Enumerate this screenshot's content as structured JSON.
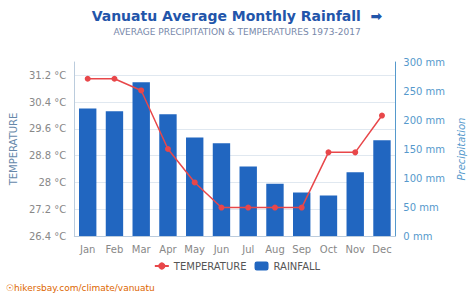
{
  "chart_data": {
    "type": "bar",
    "title": "Vanuatu Average Monthly Rainfall  ➡",
    "subtitle": "AVERAGE PRECIPITATION & TEMPERATURES 1973-2017",
    "ylabel": "TEMPERATURE",
    "y2label": "Precipitation",
    "annotations": [
      "☉hikersbay.com/climate/vanuatu"
    ],
    "categories": [
      "Jan",
      "Feb",
      "Mar",
      "Apr",
      "May",
      "Jun",
      "Jul",
      "Aug",
      "Sep",
      "Oct",
      "Nov",
      "Dec"
    ],
    "series": [
      {
        "name": "TEMPERATURE",
        "type": "line",
        "color": "#e8474a",
        "marker": "circle",
        "values": [
          31.1,
          31.1,
          30.75,
          29.0,
          28.0,
          27.25,
          27.25,
          27.25,
          27.25,
          28.9,
          28.9,
          30.0
        ]
      },
      {
        "name": "RAINFALL",
        "type": "bar",
        "color": "#2166c0",
        "axis": "y2",
        "values": [
          220,
          215,
          265,
          210,
          170,
          160,
          120,
          90,
          75,
          70,
          110,
          165
        ]
      }
    ],
    "ylim": [
      26.4,
      31.6
    ],
    "yticks": [
      {
        "value": 26.4,
        "label": "26.4 °C"
      },
      {
        "value": 27.2,
        "label": "27.2 °C"
      },
      {
        "value": 28.0,
        "label": "28 °C"
      },
      {
        "value": 28.8,
        "label": "28.8 °C"
      },
      {
        "value": 29.6,
        "label": "29.6 °C"
      },
      {
        "value": 30.4,
        "label": "30.4 °C"
      },
      {
        "value": 31.2,
        "label": "31.2 °C"
      }
    ],
    "y2lim": [
      0,
      300
    ],
    "y2ticks": [
      {
        "value": 0,
        "label": "0 mm"
      },
      {
        "value": 50,
        "label": "50 mm"
      },
      {
        "value": 100,
        "label": "100 mm"
      },
      {
        "value": 150,
        "label": "150 mm"
      },
      {
        "value": 200,
        "label": "200 mm"
      },
      {
        "value": 250,
        "label": "250 mm"
      },
      {
        "value": 300,
        "label": "300 mm"
      }
    ],
    "grid": true,
    "legend": "bottom"
  }
}
